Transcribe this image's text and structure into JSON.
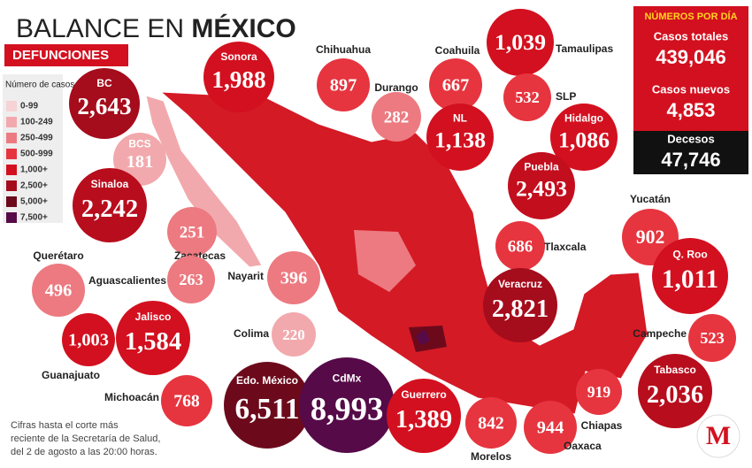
{
  "header": {
    "title_prefix": "BALANCE EN",
    "title_bold": "MÉXICO",
    "subtitle": "DEFUNCIONES"
  },
  "legend": {
    "title": "Número de casos",
    "items": [
      {
        "label": "0-99",
        "color": "#f6d3d5"
      },
      {
        "label": "100-249",
        "color": "#f2a9ad"
      },
      {
        "label": "250-499",
        "color": "#ec7a80"
      },
      {
        "label": "500-999",
        "color": "#e6353f"
      },
      {
        "label": "1,000+",
        "color": "#d3101f"
      },
      {
        "label": "2,500+",
        "color": "#a50c1c"
      },
      {
        "label": "5,000+",
        "color": "#6c0a1c"
      },
      {
        "label": "7,500+",
        "color": "#560a48"
      }
    ]
  },
  "stats": {
    "heading": "NÚMEROS POR DÍA",
    "items": [
      {
        "label": "Casos totales",
        "value": "439,046"
      },
      {
        "label": "Casos nuevos",
        "value": "4,853"
      },
      {
        "label": "Decesos",
        "value": "47,746"
      }
    ]
  },
  "states": [
    {
      "name": "BC",
      "value": "2,643",
      "color": "#a50c1c"
    },
    {
      "name": "Sonora",
      "value": "1,988",
      "color": "#d3101f"
    },
    {
      "name": "Chihuahua",
      "value": "897",
      "color": "#e6353f"
    },
    {
      "name": "Durango",
      "value": "282",
      "color": "#ec7a80"
    },
    {
      "name": "Coahuila",
      "value": "667",
      "color": "#e6353f"
    },
    {
      "name": "Tamaulipas",
      "value": "1,039",
      "color": "#d3101f"
    },
    {
      "name": "SLP",
      "value": "532",
      "color": "#e6353f"
    },
    {
      "name": "NL",
      "value": "1,138",
      "color": "#d3101f"
    },
    {
      "name": "Hidalgo",
      "value": "1,086",
      "color": "#d3101f"
    },
    {
      "name": "BCS",
      "value": "181",
      "color": "#f2a9ad"
    },
    {
      "name": "Puebla",
      "value": "2,493",
      "color": "#c30e1e"
    },
    {
      "name": "Sinaloa",
      "value": "2,242",
      "color": "#b80d1d"
    },
    {
      "name": "Yucatán",
      "value": "902",
      "color": "#e6353f"
    },
    {
      "name": "Zacatecas",
      "value": "251",
      "color": "#ec7a80"
    },
    {
      "name": "Tlaxcala",
      "value": "686",
      "color": "#e6353f"
    },
    {
      "name": "Q. Roo",
      "value": "1,011",
      "color": "#d3101f"
    },
    {
      "name": "Querétaro",
      "value": "496",
      "color": "#ec7a80"
    },
    {
      "name": "Aguascalientes",
      "value": "263",
      "color": "#ec7a80"
    },
    {
      "name": "Nayarit",
      "value": "396",
      "color": "#ec7a80"
    },
    {
      "name": "Veracruz",
      "value": "2,821",
      "color": "#a50c1c"
    },
    {
      "name": "Jalisco",
      "value": "1,584",
      "color": "#d3101f"
    },
    {
      "name": "Guanajuato",
      "value": "1,003",
      "color": "#d3101f"
    },
    {
      "name": "Colima",
      "value": "220",
      "color": "#f2a9ad"
    },
    {
      "name": "Campeche",
      "value": "523",
      "color": "#e6353f"
    },
    {
      "name": "Tabasco",
      "value": "2,036",
      "color": "#b80d1d"
    },
    {
      "name": "Chiapas",
      "value": "919",
      "color": "#e6353f"
    },
    {
      "name": "Michoacán",
      "value": "768",
      "color": "#e6353f"
    },
    {
      "name": "Edo. México",
      "value": "6,511",
      "color": "#6c0a1c"
    },
    {
      "name": "CdMx",
      "value": "8,993",
      "color": "#560a48"
    },
    {
      "name": "Guerrero",
      "value": "1,389",
      "color": "#d3101f"
    },
    {
      "name": "Morelos",
      "value": "842",
      "color": "#e6353f"
    },
    {
      "name": "Oaxaca",
      "value": "944",
      "color": "#e6353f"
    }
  ],
  "footnote": [
    "Cifras hasta el corte más",
    "reciente de la Secretaría de Salud,",
    "del 2 de agosto a las 20:00 horas."
  ],
  "logo": "M"
}
